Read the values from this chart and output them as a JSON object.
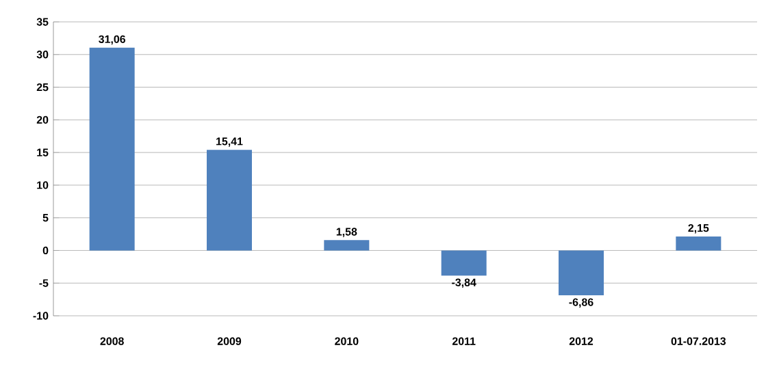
{
  "chart_data": {
    "type": "bar",
    "categories": [
      "2008",
      "2009",
      "2010",
      "2011",
      "2012",
      "01-07.2013"
    ],
    "values": [
      31.06,
      15.41,
      1.58,
      -3.84,
      -6.86,
      2.15
    ],
    "value_labels": [
      "31,06",
      "15,41",
      "1,58",
      "-3,84",
      "-6,86",
      "2,15"
    ],
    "color": "#4f81bd",
    "ylim": [
      -10,
      35
    ],
    "yticks": [
      -10,
      -5,
      0,
      5,
      10,
      15,
      20,
      25,
      30,
      35
    ],
    "grid": "y"
  }
}
